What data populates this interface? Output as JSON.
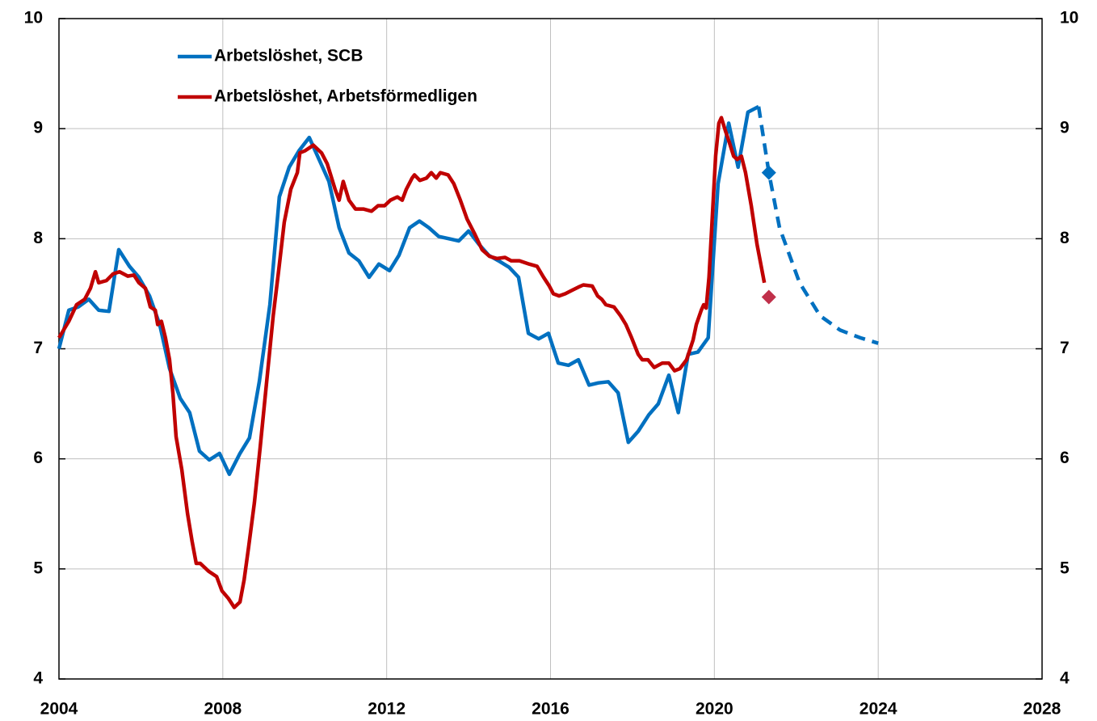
{
  "chart_data": {
    "type": "line",
    "xlim": [
      2004,
      2028
    ],
    "xticks": [
      2004,
      2008,
      2012,
      2016,
      2020,
      2024,
      2028
    ],
    "ylim": [
      4,
      10
    ],
    "yticks": [
      4,
      5,
      6,
      7,
      8,
      9,
      10
    ],
    "y2lim": [
      4,
      10
    ],
    "y2ticks": [
      4,
      5,
      6,
      7,
      8,
      9,
      10
    ],
    "grid": true,
    "legend": "upper left",
    "series": [
      {
        "name": "Arbetslöshet, SCB",
        "color": "#0070c0",
        "x": [
          2004.0,
          2004.24,
          2004.47,
          2004.73,
          2004.97,
          2005.22,
          2005.46,
          2005.72,
          2005.95,
          2006.21,
          2006.46,
          2006.7,
          2006.96,
          2007.19,
          2007.43,
          2007.67,
          2007.92,
          2008.16,
          2008.42,
          2008.65,
          2008.89,
          2009.15,
          2009.38,
          2009.62,
          2009.86,
          2010.11,
          2010.35,
          2010.59,
          2010.84,
          2011.08,
          2011.32,
          2011.57,
          2011.81,
          2012.07,
          2012.3,
          2012.56,
          2012.8,
          2013.03,
          2013.27,
          2013.52,
          2013.76,
          2014.0,
          2014.25,
          2014.49,
          2014.73,
          2014.99,
          2015.22,
          2015.46,
          2015.71,
          2015.95,
          2016.19,
          2016.44,
          2016.68,
          2016.94,
          2017.17,
          2017.41,
          2017.65,
          2017.9,
          2018.14,
          2018.4,
          2018.63,
          2018.89,
          2019.12,
          2019.36,
          2019.6,
          2019.85,
          2020.09,
          2020.35,
          2020.58,
          2020.82,
          2021.08
        ],
        "values": [
          7.0,
          7.35,
          7.38,
          7.45,
          7.35,
          7.34,
          7.9,
          7.75,
          7.65,
          7.48,
          7.22,
          6.82,
          6.55,
          6.42,
          6.07,
          5.99,
          6.05,
          5.86,
          6.05,
          6.19,
          6.7,
          7.4,
          8.38,
          8.65,
          8.8,
          8.92,
          8.72,
          8.52,
          8.1,
          7.87,
          7.8,
          7.65,
          7.77,
          7.71,
          7.85,
          8.1,
          8.16,
          8.1,
          8.02,
          8.0,
          7.98,
          8.07,
          7.95,
          7.85,
          7.8,
          7.74,
          7.65,
          7.14,
          7.09,
          7.14,
          6.87,
          6.85,
          6.9,
          6.67,
          6.69,
          6.7,
          6.6,
          6.15,
          6.25,
          6.4,
          6.5,
          6.76,
          6.42,
          6.95,
          6.97,
          7.1,
          8.5,
          9.05,
          8.65,
          9.15,
          9.2
        ]
      },
      {
        "name": "Arbetslöshet, Arbetsförmedligen",
        "color": "#c00000",
        "x": [
          2004.0,
          2004.24,
          2004.43,
          2004.63,
          2004.77,
          2004.89,
          2004.97,
          2005.16,
          2005.32,
          2005.48,
          2005.68,
          2005.83,
          2005.95,
          2006.11,
          2006.23,
          2006.35,
          2006.41,
          2006.5,
          2006.6,
          2006.7,
          2006.78,
          2006.86,
          2007.0,
          2007.14,
          2007.25,
          2007.35,
          2007.45,
          2007.65,
          2007.85,
          2007.98,
          2008.14,
          2008.28,
          2008.42,
          2008.52,
          2008.63,
          2008.77,
          2008.91,
          2009.07,
          2009.23,
          2009.36,
          2009.5,
          2009.66,
          2009.82,
          2009.88,
          2010.01,
          2010.21,
          2010.41,
          2010.55,
          2010.74,
          2010.84,
          2010.94,
          2011.08,
          2011.24,
          2011.43,
          2011.63,
          2011.79,
          2011.95,
          2012.09,
          2012.26,
          2012.38,
          2012.48,
          2012.62,
          2012.68,
          2012.81,
          2012.97,
          2013.09,
          2013.21,
          2013.31,
          2013.5,
          2013.64,
          2013.8,
          2013.96,
          2014.14,
          2014.33,
          2014.51,
          2014.69,
          2014.89,
          2015.04,
          2015.24,
          2015.48,
          2015.67,
          2015.83,
          2015.97,
          2016.07,
          2016.21,
          2016.36,
          2016.52,
          2016.68,
          2016.8,
          2017.02,
          2017.15,
          2017.25,
          2017.35,
          2017.55,
          2017.71,
          2017.84,
          2017.98,
          2018.14,
          2018.24,
          2018.38,
          2018.53,
          2018.73,
          2018.89,
          2019.03,
          2019.16,
          2019.32,
          2019.48,
          2019.56,
          2019.68,
          2019.74,
          2019.8,
          2019.87,
          2019.95,
          2020.03,
          2020.11,
          2020.17,
          2020.27,
          2020.37,
          2020.47,
          2020.56,
          2020.66,
          2020.76,
          2020.9,
          2021.04,
          2021.22
        ],
        "values": [
          7.1,
          7.25,
          7.4,
          7.45,
          7.55,
          7.7,
          7.6,
          7.62,
          7.68,
          7.7,
          7.66,
          7.67,
          7.6,
          7.55,
          7.38,
          7.35,
          7.22,
          7.25,
          7.1,
          6.9,
          6.6,
          6.2,
          5.9,
          5.5,
          5.25,
          5.05,
          5.05,
          4.98,
          4.93,
          4.8,
          4.73,
          4.65,
          4.7,
          4.9,
          5.2,
          5.6,
          6.1,
          6.7,
          7.3,
          7.7,
          8.15,
          8.45,
          8.6,
          8.78,
          8.8,
          8.85,
          8.78,
          8.68,
          8.45,
          8.35,
          8.52,
          8.35,
          8.27,
          8.27,
          8.25,
          8.3,
          8.3,
          8.35,
          8.38,
          8.35,
          8.45,
          8.55,
          8.58,
          8.53,
          8.55,
          8.6,
          8.55,
          8.6,
          8.58,
          8.5,
          8.35,
          8.18,
          8.05,
          7.9,
          7.84,
          7.82,
          7.83,
          7.8,
          7.8,
          7.77,
          7.75,
          7.65,
          7.57,
          7.5,
          7.48,
          7.5,
          7.53,
          7.56,
          7.58,
          7.57,
          7.48,
          7.45,
          7.4,
          7.38,
          7.3,
          7.22,
          7.1,
          6.95,
          6.9,
          6.9,
          6.83,
          6.87,
          6.87,
          6.8,
          6.82,
          6.9,
          7.08,
          7.22,
          7.35,
          7.4,
          7.37,
          7.65,
          8.2,
          8.75,
          9.05,
          9.1,
          8.98,
          8.87,
          8.75,
          8.72,
          8.75,
          8.6,
          8.3,
          7.95,
          7.6
        ]
      }
    ],
    "forecast": {
      "color": "#0070c0",
      "dashed": true,
      "x": [
        2021.08,
        2021.33,
        2021.59,
        2022.08,
        2022.58,
        2023.07,
        2023.56,
        2024.0
      ],
      "values": [
        9.2,
        8.6,
        8.1,
        7.6,
        7.3,
        7.17,
        7.1,
        7.05
      ]
    },
    "markers": [
      {
        "x": 2021.33,
        "value": 8.6,
        "color": "#0070c0"
      },
      {
        "x": 2021.33,
        "value": 7.47,
        "color": "#c0304a"
      }
    ]
  }
}
